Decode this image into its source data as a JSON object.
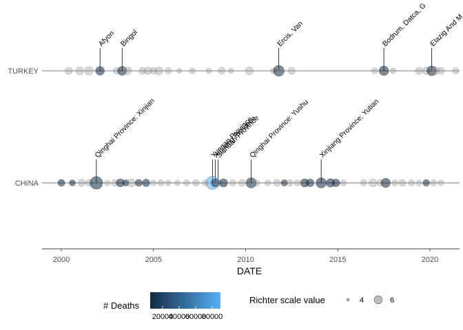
{
  "chart_data": {
    "type": "scatter",
    "xlabel": "DATE",
    "x_ticks": [
      "2000",
      "2005",
      "2010",
      "2015",
      "2020"
    ],
    "xlim": [
      1999.0,
      2021.4
    ],
    "rows": [
      "TURKEY",
      "CHINA"
    ],
    "grid": false,
    "legend_position": "bottom",
    "colors": {
      "row_line": "#bebebe",
      "point_gray": "#8f8f8f",
      "deaths_low": "#132b43",
      "deaths_high": "#56b1f7"
    },
    "legend": {
      "deaths_title": "# Deaths",
      "deaths_ticks": [
        {
          "label": "20000",
          "value": 20000
        },
        {
          "label": "40000",
          "value": 40000
        },
        {
          "label": "60000",
          "value": 60000
        },
        {
          "label": "80000",
          "value": 80000
        }
      ],
      "deaths_range": [
        5000,
        90000
      ],
      "size_title": "Richter scale value",
      "size_items": [
        {
          "label": "4",
          "value": 4
        },
        {
          "label": "6",
          "value": 6
        }
      ]
    },
    "annotations": [
      {
        "row": "TURKEY",
        "date": 2002.1,
        "label": "Afyon"
      },
      {
        "row": "TURKEY",
        "date": 2003.3,
        "label": "Bingol"
      },
      {
        "row": "TURKEY",
        "date": 2011.8,
        "label": "Ercis, Van"
      },
      {
        "row": "TURKEY",
        "date": 2017.5,
        "label": "Bodrum, Datca, G"
      },
      {
        "row": "TURKEY",
        "date": 2020.1,
        "label": "Elazig And M"
      },
      {
        "row": "CHINA",
        "date": 2001.9,
        "label": "Qinghai Province: Xinjian"
      },
      {
        "row": "CHINA",
        "date": 2008.2,
        "label": "Yunnan Province"
      },
      {
        "row": "CHINA",
        "date": 2008.35,
        "label": "Xinjiang Province"
      },
      {
        "row": "CHINA",
        "date": 2008.5,
        "label": "Sichuan Province"
      },
      {
        "row": "CHINA",
        "date": 2010.3,
        "label": "Qinghai Province: Yushu"
      },
      {
        "row": "CHINA",
        "date": 2014.1,
        "label": "Xinjiang Province: Yutian"
      }
    ],
    "points": [
      {
        "row": "TURKEY",
        "date": 2000.4,
        "mag": 5.8
      },
      {
        "row": "TURKEY",
        "date": 2001.0,
        "mag": 6.0
      },
      {
        "row": "TURKEY",
        "date": 2001.5,
        "mag": 6.2
      },
      {
        "row": "TURKEY",
        "date": 2002.1,
        "mag": 6.3,
        "deaths": 40
      },
      {
        "row": "TURKEY",
        "date": 2003.0,
        "mag": 5.5
      },
      {
        "row": "TURKEY",
        "date": 2003.3,
        "mag": 6.4,
        "deaths": 170
      },
      {
        "row": "TURKEY",
        "date": 2003.6,
        "mag": 5.9
      },
      {
        "row": "TURKEY",
        "date": 2004.4,
        "mag": 5.6
      },
      {
        "row": "TURKEY",
        "date": 2004.7,
        "mag": 5.8
      },
      {
        "row": "TURKEY",
        "date": 2005.0,
        "mag": 5.5
      },
      {
        "row": "TURKEY",
        "date": 2005.3,
        "mag": 6.0
      },
      {
        "row": "TURKEY",
        "date": 2005.8,
        "mag": 5.4
      },
      {
        "row": "TURKEY",
        "date": 2006.4,
        "mag": 4.8
      },
      {
        "row": "TURKEY",
        "date": 2007.1,
        "mag": 5.2
      },
      {
        "row": "TURKEY",
        "date": 2008.0,
        "mag": 5.0
      },
      {
        "row": "TURKEY",
        "date": 2008.7,
        "mag": 5.6
      },
      {
        "row": "TURKEY",
        "date": 2009.2,
        "mag": 4.9
      },
      {
        "row": "TURKEY",
        "date": 2010.2,
        "mag": 6.0
      },
      {
        "row": "TURKEY",
        "date": 2011.5,
        "mag": 5.1
      },
      {
        "row": "TURKEY",
        "date": 2011.8,
        "mag": 7.1,
        "deaths": 600
      },
      {
        "row": "TURKEY",
        "date": 2011.9,
        "mag": 5.6
      },
      {
        "row": "TURKEY",
        "date": 2012.5,
        "mag": 5.7
      },
      {
        "row": "TURKEY",
        "date": 2017.0,
        "mag": 5.3
      },
      {
        "row": "TURKEY",
        "date": 2017.5,
        "mag": 6.6,
        "deaths": 2
      },
      {
        "row": "TURKEY",
        "date": 2018.0,
        "mag": 5.1
      },
      {
        "row": "TURKEY",
        "date": 2019.4,
        "mag": 5.7
      },
      {
        "row": "TURKEY",
        "date": 2019.8,
        "mag": 5.9
      },
      {
        "row": "TURKEY",
        "date": 2020.1,
        "mag": 6.7,
        "deaths": 41
      },
      {
        "row": "TURKEY",
        "date": 2020.3,
        "mag": 6.0
      },
      {
        "row": "TURKEY",
        "date": 2020.6,
        "mag": 5.6
      },
      {
        "row": "TURKEY",
        "date": 2021.4,
        "mag": 5.4
      },
      {
        "row": "CHINA",
        "date": 2000.0,
        "mag": 5.6,
        "deaths": 7
      },
      {
        "row": "CHINA",
        "date": 2000.6,
        "mag": 5.3,
        "deaths": 3
      },
      {
        "row": "CHINA",
        "date": 2001.1,
        "mag": 5.8
      },
      {
        "row": "CHINA",
        "date": 2001.5,
        "mag": 5.5
      },
      {
        "row": "CHINA",
        "date": 2001.9,
        "mag": 7.8,
        "deaths": 2
      },
      {
        "row": "CHINA",
        "date": 2002.5,
        "mag": 5.2
      },
      {
        "row": "CHINA",
        "date": 2002.9,
        "mag": 5.5
      },
      {
        "row": "CHINA",
        "date": 2003.2,
        "mag": 6.0,
        "deaths": 268
      },
      {
        "row": "CHINA",
        "date": 2003.5,
        "mag": 5.4,
        "deaths": 4
      },
      {
        "row": "CHINA",
        "date": 2003.8,
        "mag": 6.1
      },
      {
        "row": "CHINA",
        "date": 2004.2,
        "mag": 5.6,
        "deaths": 5
      },
      {
        "row": "CHINA",
        "date": 2004.6,
        "mag": 5.8,
        "deaths": 10
      },
      {
        "row": "CHINA",
        "date": 2005.0,
        "mag": 5.2
      },
      {
        "row": "CHINA",
        "date": 2005.4,
        "mag": 5.4
      },
      {
        "row": "CHINA",
        "date": 2005.8,
        "mag": 5.1
      },
      {
        "row": "CHINA",
        "date": 2006.3,
        "mag": 5.0
      },
      {
        "row": "CHINA",
        "date": 2006.8,
        "mag": 5.3
      },
      {
        "row": "CHINA",
        "date": 2007.3,
        "mag": 5.5
      },
      {
        "row": "CHINA",
        "date": 2007.8,
        "mag": 5.2
      },
      {
        "row": "CHINA",
        "date": 2008.2,
        "mag": 7.9,
        "deaths": 87587
      },
      {
        "row": "CHINA",
        "date": 2008.35,
        "mag": 6.0,
        "deaths": 1000
      },
      {
        "row": "CHINA",
        "date": 2008.5,
        "mag": 5.8
      },
      {
        "row": "CHINA",
        "date": 2008.8,
        "mag": 6.1,
        "deaths": 8
      },
      {
        "row": "CHINA",
        "date": 2009.3,
        "mag": 5.4
      },
      {
        "row": "CHINA",
        "date": 2009.8,
        "mag": 5.6
      },
      {
        "row": "CHINA",
        "date": 2010.3,
        "mag": 6.9,
        "deaths": 2220
      },
      {
        "row": "CHINA",
        "date": 2010.6,
        "mag": 5.3
      },
      {
        "row": "CHINA",
        "date": 2011.2,
        "mag": 5.2
      },
      {
        "row": "CHINA",
        "date": 2011.7,
        "mag": 5.6
      },
      {
        "row": "CHINA",
        "date": 2012.1,
        "mag": 5.4,
        "deaths": 3
      },
      {
        "row": "CHINA",
        "date": 2012.4,
        "mag": 5.5
      },
      {
        "row": "CHINA",
        "date": 2012.8,
        "mag": 5.3
      },
      {
        "row": "CHINA",
        "date": 2013.2,
        "mag": 6.1,
        "deaths": 196
      },
      {
        "row": "CHINA",
        "date": 2013.5,
        "mag": 5.9,
        "deaths": 95
      },
      {
        "row": "CHINA",
        "date": 2014.1,
        "mag": 6.9,
        "deaths": 1
      },
      {
        "row": "CHINA",
        "date": 2014.6,
        "mag": 6.2,
        "deaths": 617
      },
      {
        "row": "CHINA",
        "date": 2014.9,
        "mag": 5.9,
        "deaths": 1
      },
      {
        "row": "CHINA",
        "date": 2015.3,
        "mag": 5.3
      },
      {
        "row": "CHINA",
        "date": 2016.4,
        "mag": 5.4
      },
      {
        "row": "CHINA",
        "date": 2016.9,
        "mag": 6.0
      },
      {
        "row": "CHINA",
        "date": 2017.3,
        "mag": 5.5
      },
      {
        "row": "CHINA",
        "date": 2017.6,
        "mag": 6.5,
        "deaths": 25
      },
      {
        "row": "CHINA",
        "date": 2018.1,
        "mag": 5.3
      },
      {
        "row": "CHINA",
        "date": 2018.5,
        "mag": 5.6
      },
      {
        "row": "CHINA",
        "date": 2019.0,
        "mag": 5.4
      },
      {
        "row": "CHINA",
        "date": 2019.4,
        "mag": 5.2
      },
      {
        "row": "CHINA",
        "date": 2019.8,
        "mag": 5.5,
        "deaths": 13
      },
      {
        "row": "CHINA",
        "date": 2020.2,
        "mag": 5.4
      },
      {
        "row": "CHINA",
        "date": 2020.6,
        "mag": 5.1
      }
    ]
  }
}
